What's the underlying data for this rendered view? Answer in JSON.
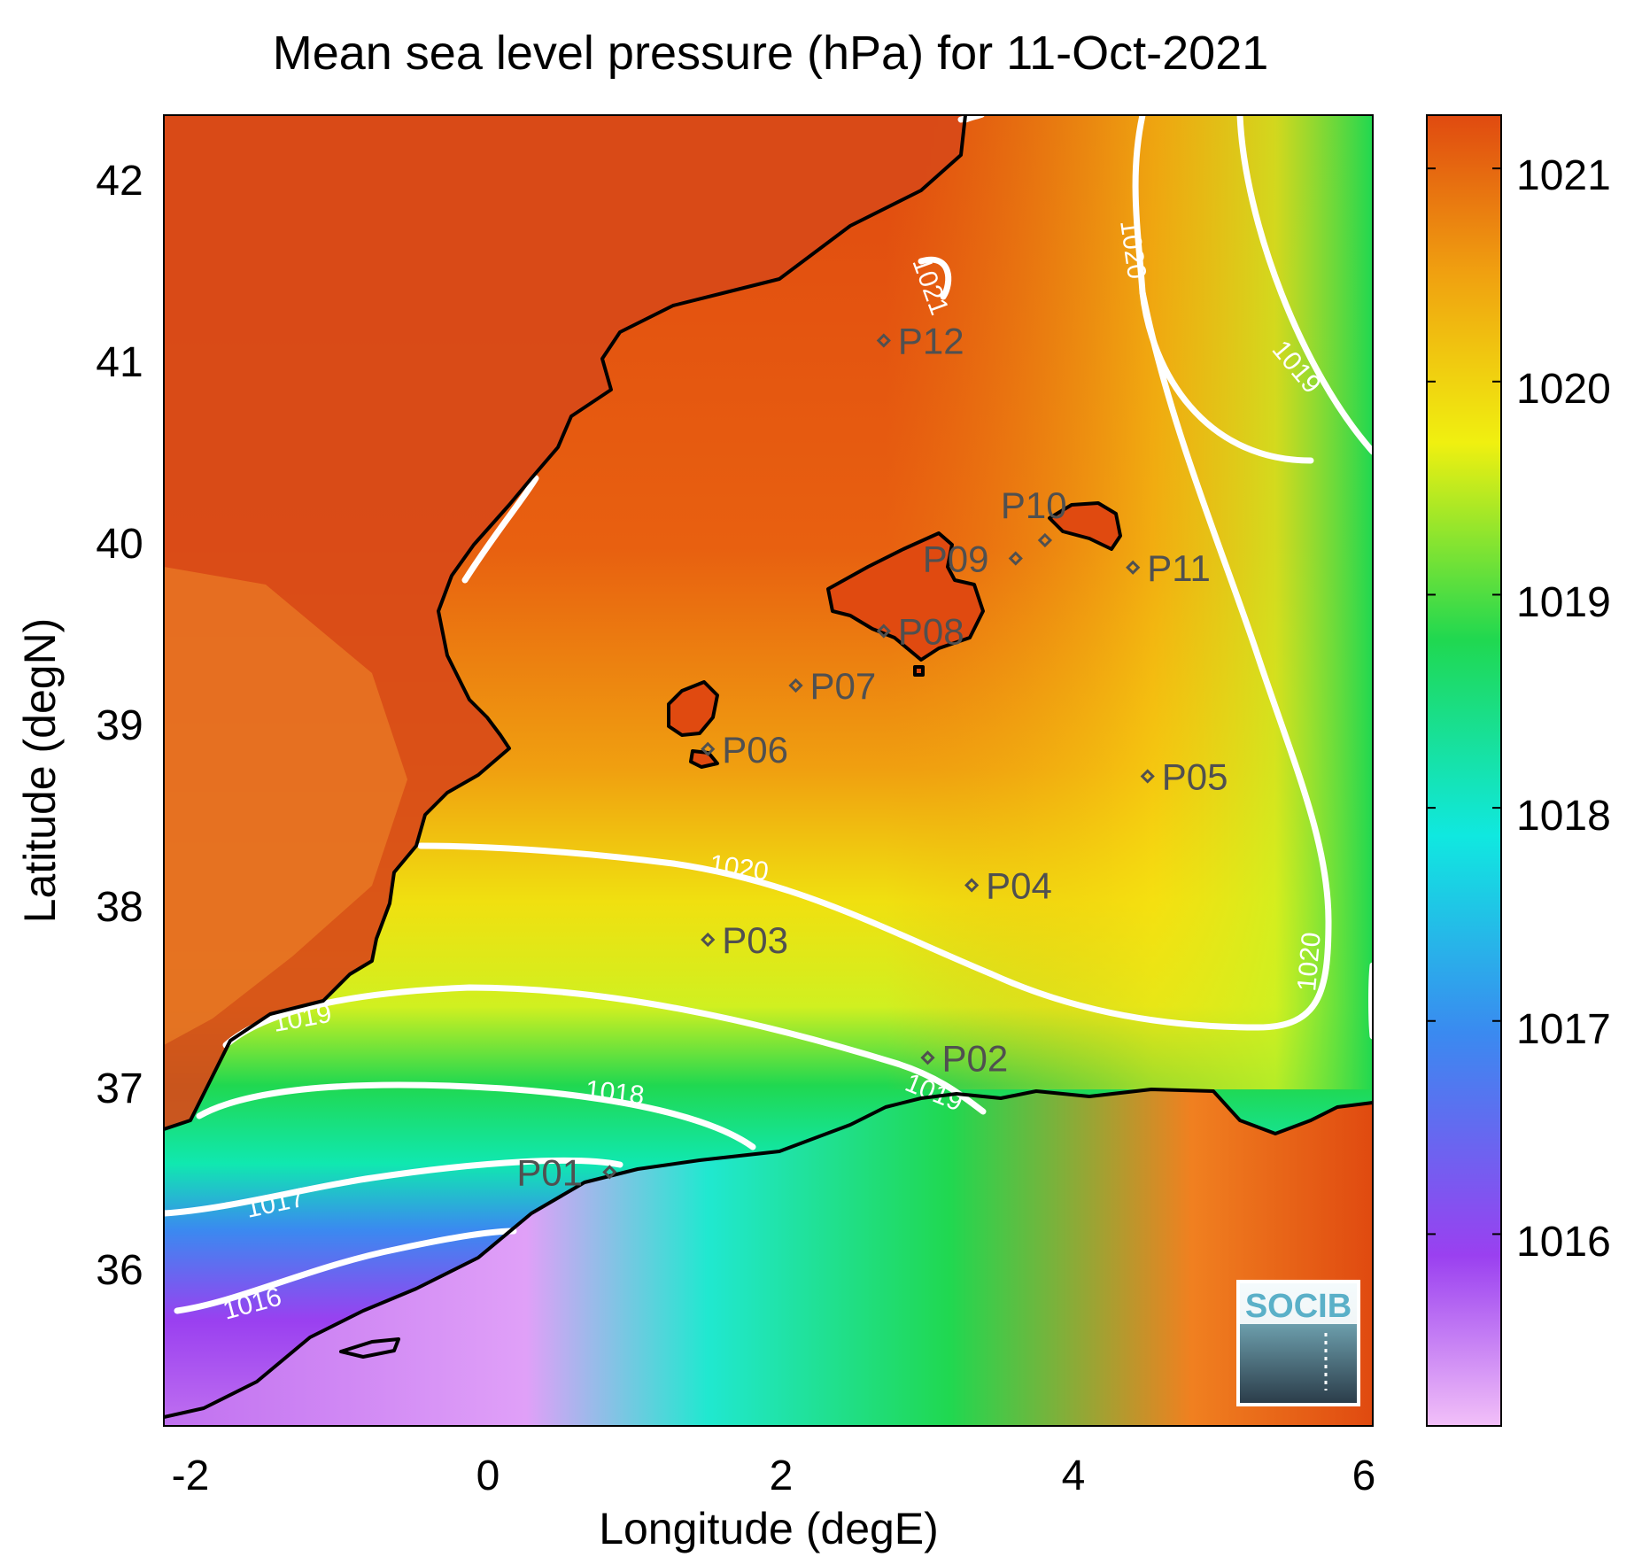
{
  "title": "Mean sea level pressure (hPa) for 11-Oct-2021",
  "xlabel": "Longitude (degE)",
  "ylabel": "Latitude (degN)",
  "x_ticks": [
    "-2",
    "0",
    "2",
    "4",
    "6"
  ],
  "y_ticks": [
    "36",
    "37",
    "38",
    "39",
    "40",
    "41",
    "42"
  ],
  "colorbar": {
    "ticks": [
      "1016",
      "1017",
      "1018",
      "1019",
      "1020",
      "1021"
    ],
    "range": [
      1015.1,
      1021.25
    ],
    "colors": [
      "#f2c0f8",
      "#9a40f0",
      "#3a8af0",
      "#10e8e0",
      "#20d850",
      "#f0f010",
      "#f0a010",
      "#e04a10"
    ]
  },
  "logo": "SOCIB",
  "contour_labels": [
    {
      "text": "1021"
    },
    {
      "text": "1020"
    },
    {
      "text": "1019"
    },
    {
      "text": "1020"
    },
    {
      "text": "1019"
    },
    {
      "text": "1019"
    },
    {
      "text": "1018"
    },
    {
      "text": "1017"
    },
    {
      "text": "1016"
    },
    {
      "text": "1020"
    }
  ],
  "stations": [
    {
      "name": "P01",
      "lon": 0.83,
      "lat": 36.52
    },
    {
      "name": "P02",
      "lon": 3.0,
      "lat": 37.15
    },
    {
      "name": "P03",
      "lon": 1.5,
      "lat": 37.8
    },
    {
      "name": "P04",
      "lon": 3.3,
      "lat": 38.1
    },
    {
      "name": "P05",
      "lon": 4.5,
      "lat": 38.7
    },
    {
      "name": "P06",
      "lon": 1.5,
      "lat": 38.85
    },
    {
      "name": "P07",
      "lon": 2.1,
      "lat": 39.2
    },
    {
      "name": "P08",
      "lon": 2.7,
      "lat": 39.5
    },
    {
      "name": "P09",
      "lon": 3.6,
      "lat": 39.9
    },
    {
      "name": "P10",
      "lon": 3.8,
      "lat": 40.0
    },
    {
      "name": "P11",
      "lon": 4.4,
      "lat": 39.85
    },
    {
      "name": "P12",
      "lon": 2.7,
      "lat": 41.1
    }
  ]
}
